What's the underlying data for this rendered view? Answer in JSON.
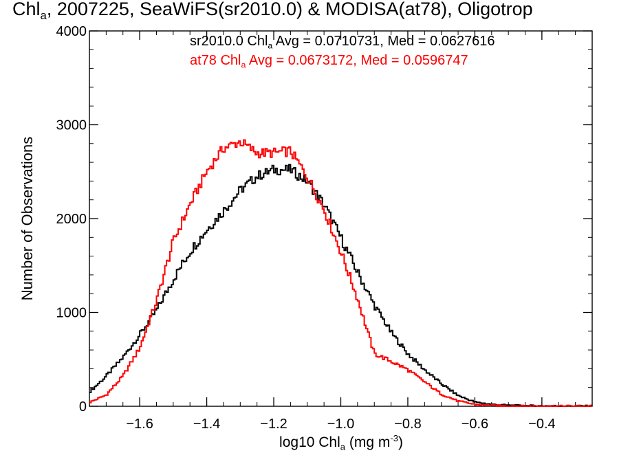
{
  "chart_data": {
    "type": "line",
    "title": {
      "prefix": "Chl",
      "sub": "a",
      "suffix": ", 2007225, SeaWiFS(sr2010.0) & MODISA(at78), Oligotrop"
    },
    "xlabel": {
      "prefix": "log10 Chl",
      "sub": "a",
      "middle": " (mg m",
      "sup": "-3",
      "suffix": ")"
    },
    "ylabel": "Number of Observations",
    "xlim": [
      -1.75,
      -0.25
    ],
    "ylim": [
      0,
      4000
    ],
    "xticks": [
      -1.6,
      -1.4,
      -1.2,
      -1.0,
      -0.8,
      -0.6,
      -0.4
    ],
    "xtick_labels": [
      "−1.6",
      "−1.4",
      "−1.2",
      "−1.0",
      "−0.8",
      "−0.6",
      "−0.4"
    ],
    "yticks": [
      0,
      1000,
      2000,
      3000,
      4000
    ],
    "ytick_labels": [
      "0",
      "1000",
      "2000",
      "3000",
      "4000"
    ],
    "grid": false,
    "legend_placement": "top-right",
    "series": [
      {
        "name": "sr2010.0",
        "color": "#000000",
        "legend": {
          "prefix": "sr2010.0 Chl",
          "sub": "a",
          "suffix": " Avg = 0.0710731, Med = 0.0627616"
        },
        "x": [
          -1.75,
          -1.7,
          -1.65,
          -1.6,
          -1.55,
          -1.5,
          -1.45,
          -1.4,
          -1.35,
          -1.3,
          -1.25,
          -1.2,
          -1.15,
          -1.1,
          -1.05,
          -1.0,
          -0.95,
          -0.9,
          -0.85,
          -0.8,
          -0.75,
          -0.7,
          -0.65,
          -0.6,
          -0.55,
          -0.5,
          -0.45,
          -0.4,
          -0.35,
          -0.3,
          -0.25
        ],
        "y": [
          150,
          320,
          520,
          760,
          1020,
          1350,
          1650,
          1880,
          2080,
          2300,
          2450,
          2520,
          2520,
          2400,
          2150,
          1800,
          1430,
          1080,
          790,
          560,
          390,
          240,
          115,
          45,
          20,
          10,
          6,
          4,
          3,
          3,
          3
        ]
      },
      {
        "name": "at78",
        "color": "#ff0000",
        "legend": {
          "prefix": "at78 Chl",
          "sub": "a",
          "suffix": " Avg = 0.0673172, Med = 0.0596747"
        },
        "x": [
          -1.75,
          -1.7,
          -1.65,
          -1.6,
          -1.55,
          -1.5,
          -1.45,
          -1.4,
          -1.35,
          -1.3,
          -1.25,
          -1.2,
          -1.15,
          -1.1,
          -1.05,
          -1.0,
          -0.95,
          -0.9,
          -0.85,
          -0.8,
          -0.75,
          -0.7,
          -0.65,
          -0.6,
          -0.55,
          -0.5,
          -0.45,
          -0.4,
          -0.35,
          -0.3,
          -0.25
        ],
        "y": [
          40,
          120,
          320,
          620,
          1120,
          1750,
          2150,
          2500,
          2750,
          2820,
          2700,
          2700,
          2720,
          2450,
          2100,
          1650,
          1150,
          560,
          480,
          390,
          260,
          130,
          55,
          20,
          8,
          4,
          3,
          2,
          2,
          2,
          2
        ]
      }
    ]
  }
}
